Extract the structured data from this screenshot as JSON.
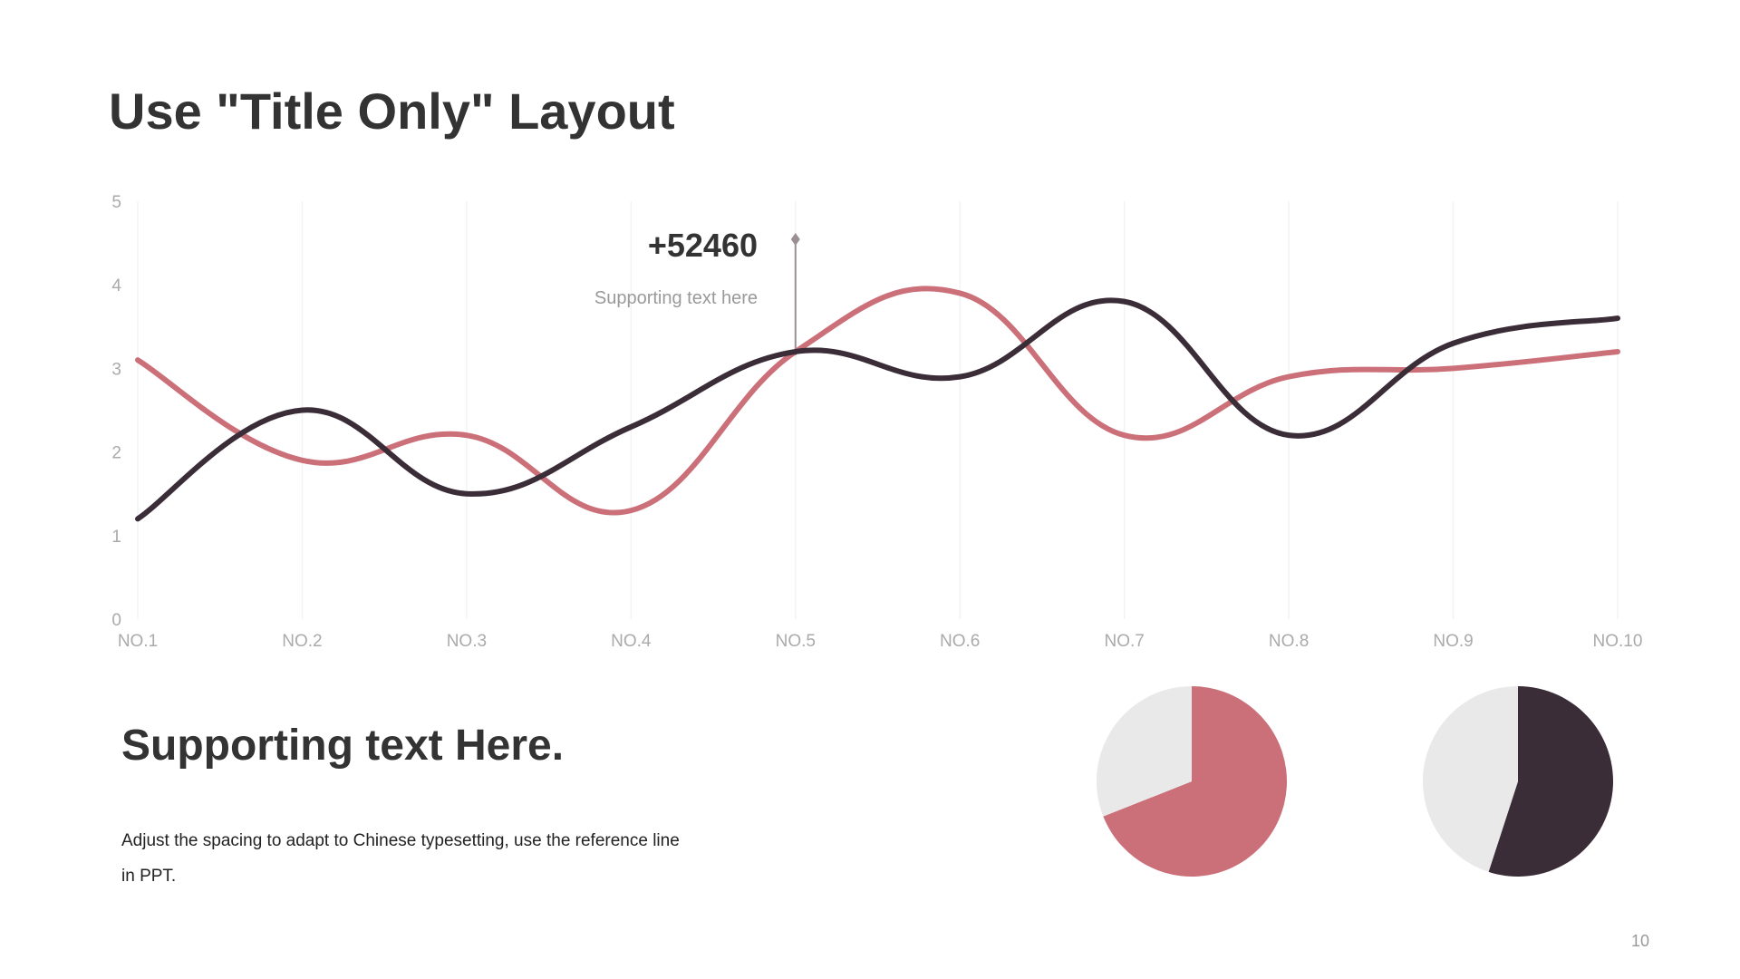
{
  "slide": {
    "title": "Use \"Title Only\" Layout",
    "page_number": "10"
  },
  "callout": {
    "value": "+52460",
    "text": "Supporting text here",
    "category": "NO.5"
  },
  "text_block": {
    "heading": "Supporting text Here.",
    "body": "Adjust the spacing to adapt to Chinese typesetting, use the reference line in PPT."
  },
  "colors": {
    "series_dark": "#3b2d37",
    "series_pink": "#cb7079",
    "pie_background": "#e9e9e9",
    "axis_text": "#aaaaaa",
    "gridline": "#f3f3f3"
  },
  "chart_data": [
    {
      "type": "line",
      "categories": [
        "NO.1",
        "NO.2",
        "NO.3",
        "NO.4",
        "NO.5",
        "NO.6",
        "NO.7",
        "NO.8",
        "NO.9",
        "NO.10"
      ],
      "series": [
        {
          "values": [
            1.2,
            2.5,
            1.5,
            2.3,
            3.2,
            2.9,
            3.8,
            2.2,
            3.3,
            3.6
          ]
        },
        {
          "values": [
            3.1,
            1.9,
            2.2,
            1.3,
            3.2,
            3.9,
            2.2,
            2.9,
            3.0,
            3.2
          ]
        }
      ],
      "yticks": [
        "0",
        "1",
        "2",
        "3",
        "4",
        "5"
      ],
      "ylim": [
        0,
        5
      ],
      "smooth": true,
      "grid": "vertical",
      "legend": "none"
    },
    {
      "type": "pie",
      "slices": [
        {
          "value": 69,
          "color": "#cb7079"
        },
        {
          "value": 31,
          "color": "#e9e9e9"
        }
      ]
    },
    {
      "type": "pie",
      "slices": [
        {
          "value": 55,
          "color": "#3b2d37"
        },
        {
          "value": 45,
          "color": "#e9e9e9"
        }
      ]
    }
  ]
}
